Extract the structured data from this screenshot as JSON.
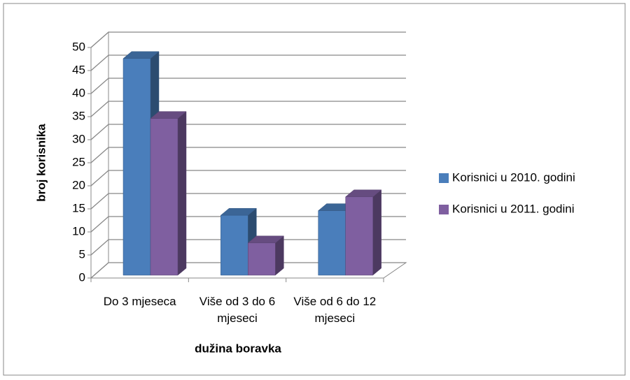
{
  "chart_data": {
    "type": "bar3d",
    "categories": [
      "Do 3 mjeseca",
      "Više od 3 do 6 mjeseci",
      "Više od 6 do 12 mjeseci"
    ],
    "series": [
      {
        "name": "Korisnici u 2010. godini",
        "color": "#4a7ebb",
        "values": [
          47,
          13,
          14
        ]
      },
      {
        "name": "Korisnici u 2011. godini",
        "color": "#7f5fa0",
        "values": [
          34,
          7,
          17
        ]
      }
    ],
    "ylim": [
      0,
      50
    ],
    "yticks": [
      0,
      5,
      10,
      15,
      20,
      25,
      30,
      35,
      40,
      45,
      50
    ],
    "y_label": "broj korisnika",
    "x_label": "dužina boravka",
    "grid": true,
    "legend": "right"
  }
}
